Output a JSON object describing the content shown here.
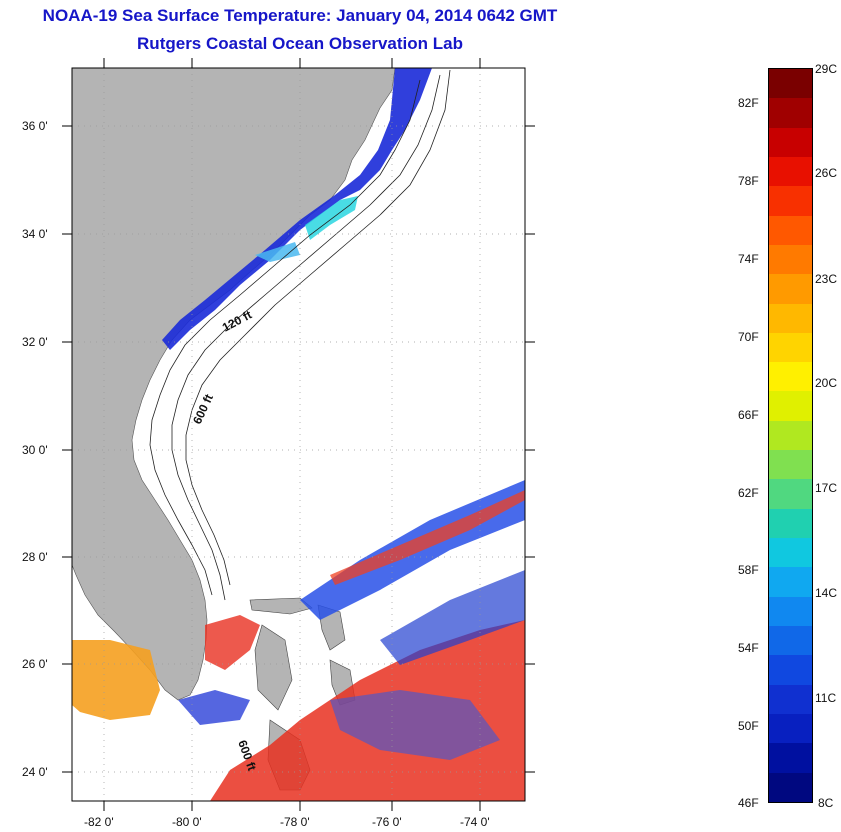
{
  "header": {
    "title": "NOAA-19 Sea Surface Temperature:  January 04, 2014 0642 GMT",
    "subtitle": "Rutgers Coastal Ocean Observation Lab"
  },
  "map": {
    "lat_labels": [
      "36 0'",
      "34 0'",
      "32 0'",
      "30 0'",
      "28 0'",
      "26 0'",
      "24 0'"
    ],
    "lon_labels": [
      "-82 0'",
      "-80 0'",
      "-78 0'",
      "-76 0'",
      "-74 0'"
    ],
    "contour_labels": [
      "120 ft",
      "600 ft",
      "600 ft"
    ],
    "land_color": "#b4b4b4",
    "background_color": "#ffffff"
  },
  "colorbar": {
    "f_labels": [
      "82F",
      "78F",
      "74F",
      "70F",
      "66F",
      "62F",
      "58F",
      "54F",
      "50F",
      "46F"
    ],
    "c_labels": [
      "29C",
      "26C",
      "23C",
      "20C",
      "17C",
      "14C",
      "11C",
      "8C"
    ],
    "min_c": 8,
    "max_c": 29
  }
}
